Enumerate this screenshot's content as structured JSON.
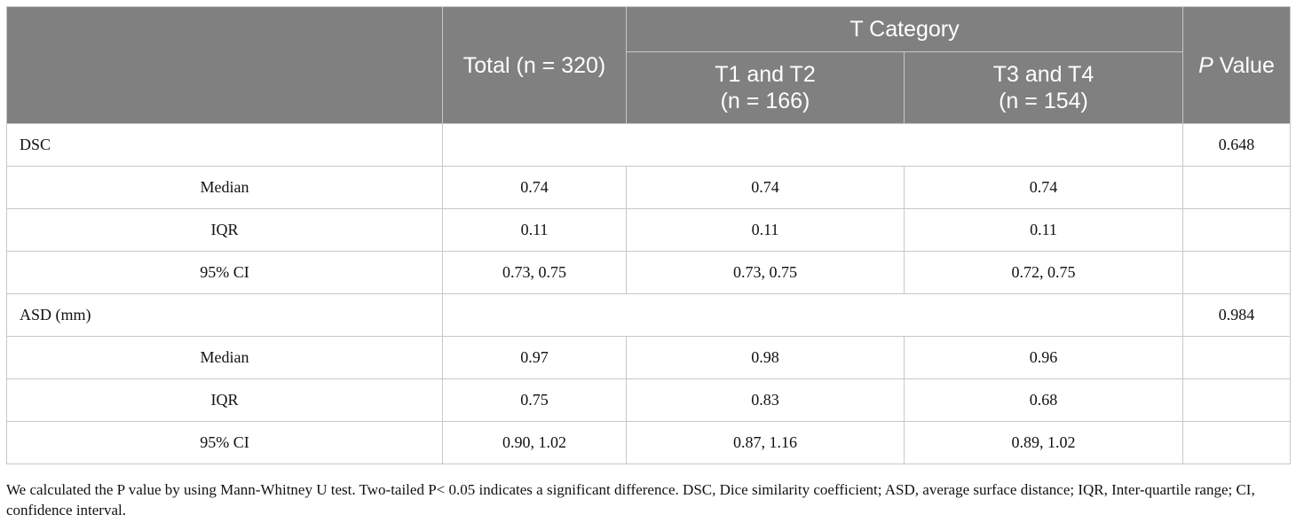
{
  "header": {
    "total_label": "Total (n = 320)",
    "group_label": "T Category",
    "group1_line1": "T1 and T2",
    "group1_line2": "(n = 166)",
    "group2_line1": "T3 and T4",
    "group2_line2": "(n = 154)",
    "p_italic": "P",
    "p_rest": " Value"
  },
  "sections": [
    {
      "name": "DSC",
      "p_value": "0.648",
      "rows": [
        {
          "label": "Median",
          "total": "0.74",
          "t12": "0.74",
          "t34": "0.74"
        },
        {
          "label": "IQR",
          "total": "0.11",
          "t12": "0.11",
          "t34": "0.11"
        },
        {
          "label": "95% CI",
          "total": "0.73, 0.75",
          "t12": "0.73, 0.75",
          "t34": "0.72, 0.75"
        }
      ]
    },
    {
      "name": "ASD (mm)",
      "p_value": "0.984",
      "rows": [
        {
          "label": "Median",
          "total": "0.97",
          "t12": "0.98",
          "t34": "0.96"
        },
        {
          "label": "IQR",
          "total": "0.75",
          "t12": "0.83",
          "t34": "0.68"
        },
        {
          "label": "95% CI",
          "total": "0.90, 1.02",
          "t12": "0.87, 1.16",
          "t34": "0.89, 1.02"
        }
      ]
    }
  ],
  "footnote": "We calculated the P value by using Mann-Whitney U test. Two-tailed P< 0.05 indicates a significant difference. DSC, Dice similarity coefficient; ASD, average surface distance; IQR, Inter-quartile range; CI, confidence interval.",
  "colors": {
    "header_bg": "#808080",
    "header_text": "#ffffff",
    "border": "#c8c8c8"
  }
}
